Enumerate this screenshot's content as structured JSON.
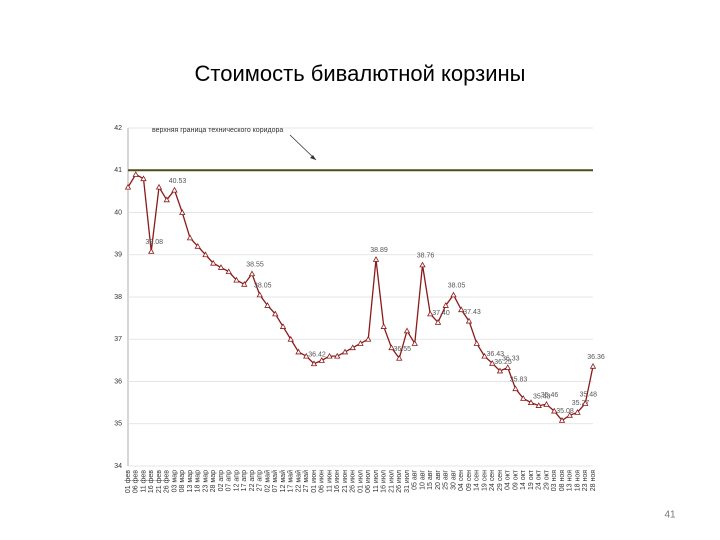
{
  "slide_number": "41",
  "chart_data": {
    "type": "line",
    "title": "Стоимость бивалютной корзины",
    "categories": [
      "01 фев",
      "06 фев",
      "11 фев",
      "16 фев",
      "21 фев",
      "26 фев",
      "03 мар",
      "08 мар",
      "13 мар",
      "18 мар",
      "23 мар",
      "28 мар",
      "02 апр",
      "07 апр",
      "12 апр",
      "17 апр",
      "22 апр",
      "27 апр",
      "02 май",
      "07 май",
      "12 май",
      "17 май",
      "22 май",
      "27 май",
      "01 июн",
      "06 июн",
      "11 июн",
      "16 июн",
      "21 июн",
      "26 июн",
      "01 июл",
      "06 июл",
      "11 июл",
      "16 июл",
      "21 июл",
      "26 июл",
      "31 июл",
      "05 авг",
      "10 авг",
      "15 авг",
      "20 авг",
      "25 авг",
      "30 авг",
      "04 сен",
      "09 сен",
      "14 сен",
      "19 сен",
      "24 сен",
      "29 сен",
      "04 окт",
      "09 окт",
      "14 окт",
      "19 окт",
      "24 окт",
      "29 окт",
      "03 ноя",
      "08 ноя",
      "13 ноя",
      "18 ноя",
      "23 ноя",
      "28 ноя"
    ],
    "series": [
      {
        "color": "#8b1a1a",
        "values": [
          40.6,
          40.9,
          40.8,
          39.08,
          40.6,
          40.3,
          40.53,
          40.0,
          39.4,
          39.2,
          39.0,
          38.8,
          38.7,
          38.6,
          38.4,
          38.3,
          38.55,
          38.05,
          37.8,
          37.6,
          37.3,
          37.0,
          36.7,
          36.6,
          36.42,
          36.5,
          36.6,
          36.6,
          36.7,
          36.8,
          36.9,
          37.0,
          38.89,
          37.3,
          36.8,
          36.55,
          37.2,
          36.9,
          38.76,
          37.6,
          37.4,
          37.8,
          38.05,
          37.7,
          37.43,
          36.9,
          36.6,
          36.43,
          36.25,
          36.33,
          35.83,
          35.6,
          35.5,
          35.43,
          35.46,
          35.3,
          35.08,
          35.2,
          35.27,
          35.48,
          36.36
        ],
        "value_labels": [
          null,
          null,
          null,
          "39.08",
          null,
          null,
          "40.53",
          null,
          null,
          null,
          null,
          null,
          null,
          null,
          null,
          null,
          "38.55",
          "38.05",
          null,
          null,
          null,
          null,
          null,
          null,
          "36.42",
          null,
          null,
          null,
          null,
          null,
          null,
          null,
          "38.89",
          null,
          null,
          "36.55",
          null,
          null,
          "38.76",
          null,
          "37.40",
          null,
          "38.05",
          null,
          "37.43",
          null,
          null,
          "36.43",
          "36.25",
          "36.33",
          "35.83",
          null,
          null,
          "35.43",
          "35.46",
          null,
          "35.08",
          null,
          "35.27",
          "35.48",
          "36.36"
        ]
      }
    ],
    "ylim": [
      34,
      42
    ],
    "yticks": [
      34,
      35,
      36,
      37,
      38,
      39,
      40,
      41,
      42
    ],
    "reference_line": {
      "value": 41,
      "color": "#4d4d1a",
      "label": "верхняя граница технического коридора"
    }
  }
}
